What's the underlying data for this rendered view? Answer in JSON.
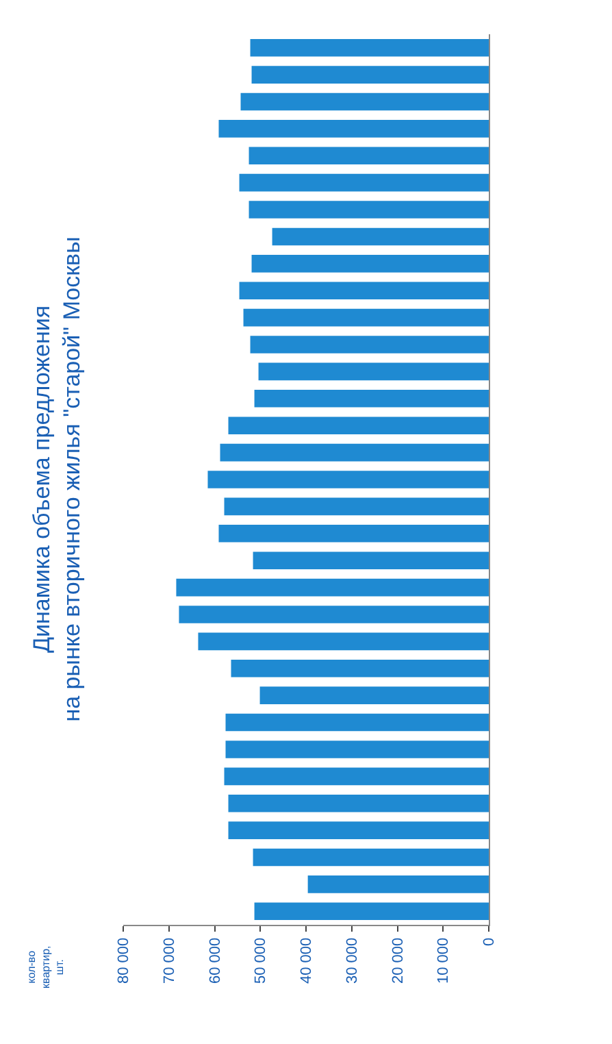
{
  "chart_data": {
    "type": "bar",
    "orientation": "horizontal",
    "title": "Динамика объема предложения\nна рынке вторичного жилья \"старой\" Москвы",
    "ylabel": "кол-во\nквартир,\nшт.",
    "categories": [
      null,
      null,
      null,
      null,
      null,
      null,
      null,
      null,
      null,
      null,
      null,
      null,
      null,
      null,
      null,
      null,
      null,
      null,
      null,
      null,
      null,
      null,
      null,
      null,
      null,
      null,
      null,
      null,
      null,
      null,
      null,
      null,
      null
    ],
    "values": [
      52200,
      51900,
      54300,
      59100,
      52500,
      54600,
      52500,
      47400,
      51900,
      54600,
      53700,
      52200,
      50400,
      51300,
      57000,
      58800,
      61500,
      57900,
      59100,
      51600,
      68400,
      67800,
      63600,
      56400,
      50100,
      57600,
      57600,
      57900,
      57000,
      57000,
      51600,
      39600,
      51300
    ],
    "color": "#1f8ad2",
    "xlim": [
      80000,
      0
    ],
    "xticks": [
      {
        "value": 80000,
        "label": "80 000"
      },
      {
        "value": 70000,
        "label": "70 000"
      },
      {
        "value": 60000,
        "label": "60 000"
      },
      {
        "value": 50000,
        "label": "50 000"
      },
      {
        "value": 40000,
        "label": "40 000"
      },
      {
        "value": 30000,
        "label": "30 000"
      },
      {
        "value": 20000,
        "label": "20 000"
      },
      {
        "value": 10000,
        "label": "10 000"
      },
      {
        "value": 0,
        "label": "0"
      }
    ],
    "tick_labels": "x"
  }
}
